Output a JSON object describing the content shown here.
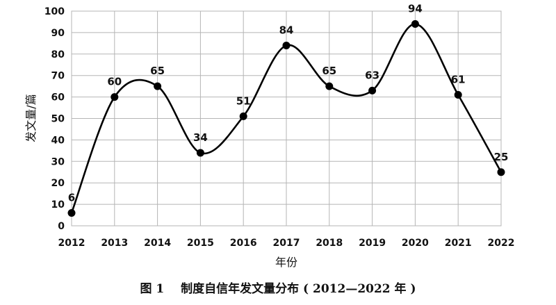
{
  "chart_data": {
    "type": "line",
    "smooth": true,
    "x": [
      "2012",
      "2013",
      "2014",
      "2015",
      "2016",
      "2017",
      "2018",
      "2019",
      "2020",
      "2021",
      "2022"
    ],
    "values": [
      6,
      60,
      65,
      34,
      51,
      84,
      65,
      63,
      94,
      61,
      25
    ],
    "data_labels": [
      "6",
      "60",
      "65",
      "34",
      "51",
      "84",
      "65",
      "63",
      "94",
      "61",
      "25"
    ],
    "ylim": [
      0,
      100
    ],
    "yticks": [
      0,
      10,
      20,
      30,
      40,
      50,
      60,
      70,
      80,
      90,
      100
    ],
    "xlabel": "年份",
    "ylabel": "发文量/篇",
    "grid": true,
    "line_color": "#000000",
    "marker_color": "#000000"
  },
  "caption": {
    "figure_number": "图 1",
    "text": "制度自信年发文量分布",
    "range": "( 2012—2022 年 )"
  }
}
